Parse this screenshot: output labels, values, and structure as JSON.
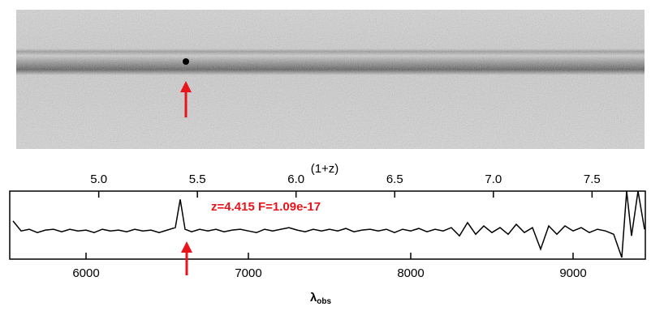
{
  "chart_data": {
    "type": "line",
    "annotation": "z=4.415  F=1.09e-17",
    "x2label": "(1+z)",
    "xlabel": [
      "λ",
      "obs"
    ],
    "x": [
      5550,
      5600,
      5650,
      5700,
      5750,
      5800,
      5850,
      5900,
      5950,
      6000,
      6050,
      6100,
      6150,
      6200,
      6250,
      6300,
      6350,
      6400,
      6450,
      6500,
      6550,
      6580,
      6610,
      6650,
      6700,
      6750,
      6800,
      6850,
      6900,
      6950,
      7000,
      7050,
      7100,
      7150,
      7200,
      7250,
      7300,
      7350,
      7400,
      7450,
      7500,
      7550,
      7600,
      7650,
      7700,
      7750,
      7800,
      7850,
      7900,
      7950,
      8000,
      8050,
      8100,
      8150,
      8200,
      8250,
      8300,
      8350,
      8400,
      8450,
      8500,
      8550,
      8600,
      8650,
      8700,
      8750,
      8800,
      8850,
      8900,
      8950,
      9000,
      9050,
      9100,
      9150,
      9200,
      9250,
      9300,
      9330,
      9360,
      9400,
      9440
    ],
    "series": [
      {
        "color": "#000000",
        "values": [
          0.6,
          0.0,
          0.1,
          -0.1,
          0.05,
          0.1,
          -0.05,
          0.1,
          0.0,
          0.05,
          -0.1,
          0.1,
          0.0,
          0.05,
          -0.05,
          0.1,
          0.0,
          0.05,
          -0.1,
          0.05,
          0.2,
          1.9,
          0.1,
          -0.05,
          0.1,
          0.0,
          0.1,
          -0.05,
          0.05,
          0.1,
          0.0,
          -0.1,
          0.1,
          0.0,
          0.1,
          0.2,
          0.05,
          -0.05,
          0.1,
          0.0,
          0.1,
          0.0,
          0.15,
          -0.05,
          0.05,
          0.1,
          0.0,
          0.1,
          -0.1,
          0.1,
          0.0,
          0.15,
          -0.05,
          0.1,
          0.0,
          0.2,
          -0.3,
          0.5,
          -0.2,
          0.3,
          -0.1,
          0.2,
          -0.2,
          0.4,
          -0.1,
          0.2,
          -1.1,
          0.3,
          -0.2,
          0.3,
          0.0,
          0.2,
          -0.1,
          0.1,
          0.0,
          -0.2,
          -1.6,
          2.4,
          -0.3,
          2.4,
          0.1
        ]
      }
    ],
    "xlim": [
      5530,
      9445
    ],
    "xticks": [
      6000,
      7000,
      8000,
      9000
    ],
    "x2lim": [
      4.549,
      7.77
    ],
    "x2ticks": [
      {
        "value": 5,
        "label": "5.0"
      },
      {
        "value": 5.5,
        "label": "5.5"
      },
      {
        "value": 6,
        "label": "6.0"
      },
      {
        "value": 6.5,
        "label": "6.5"
      },
      {
        "value": 7,
        "label": "7.0"
      },
      {
        "value": 7.5,
        "label": "7.5"
      }
    ],
    "ylim": [
      -1.7,
      2.4
    ],
    "annotation_color": "#e8141c"
  }
}
